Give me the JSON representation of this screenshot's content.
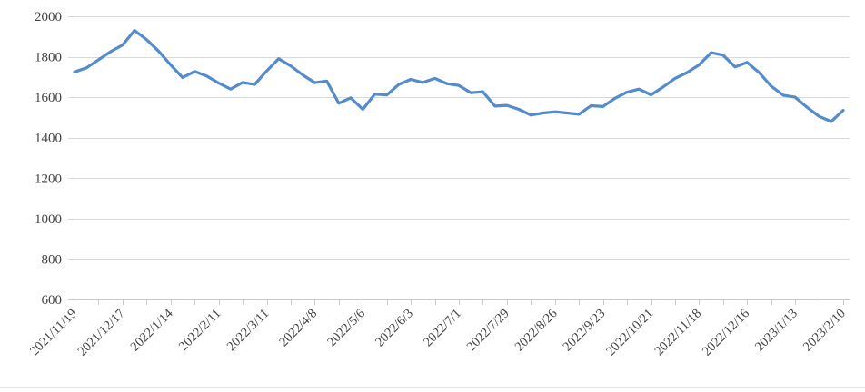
{
  "chart_data": {
    "type": "line",
    "title": "",
    "legend": "none",
    "grid": "horizontal",
    "x_start": "2021/11/19",
    "x_end": "2023/2/10",
    "frequency": "weekly",
    "x_label_interval_points": 4,
    "x_tick_labels": [
      "2021/11/19",
      "2021/12/17",
      "2022/1/14",
      "2022/2/11",
      "2022/3/11",
      "2022/4/8",
      "2022/5/6",
      "2022/6/3",
      "2022/7/1",
      "2022/7/29",
      "2022/8/26",
      "2022/9/23",
      "2022/10/21",
      "2022/11/18",
      "2022/12/16",
      "2023/1/13",
      "2023/2/10"
    ],
    "y_ticks": [
      600,
      800,
      1000,
      1200,
      1400,
      1600,
      1800,
      2000
    ],
    "ylim": [
      600,
      2000
    ],
    "series": [
      {
        "name": "",
        "color": "#548BCD",
        "values": [
          1725,
          1745,
          1785,
          1825,
          1858,
          1930,
          1885,
          1828,
          1760,
          1697,
          1727,
          1705,
          1670,
          1640,
          1673,
          1663,
          1730,
          1790,
          1755,
          1710,
          1672,
          1680,
          1570,
          1597,
          1540,
          1615,
          1611,
          1663,
          1688,
          1673,
          1693,
          1667,
          1658,
          1622,
          1627,
          1556,
          1560,
          1540,
          1512,
          1522,
          1528,
          1522,
          1516,
          1558,
          1554,
          1595,
          1625,
          1640,
          1612,
          1650,
          1693,
          1722,
          1760,
          1820,
          1808,
          1750,
          1772,
          1722,
          1655,
          1610,
          1600,
          1550,
          1505,
          1480,
          1535
        ]
      }
    ],
    "colors": {
      "gridline": "#d9d9d9",
      "axis_line": "#c9c9c9",
      "tick_mark": "#c9c9c9",
      "tick_text": "#444444",
      "background": "#ffffff"
    }
  }
}
